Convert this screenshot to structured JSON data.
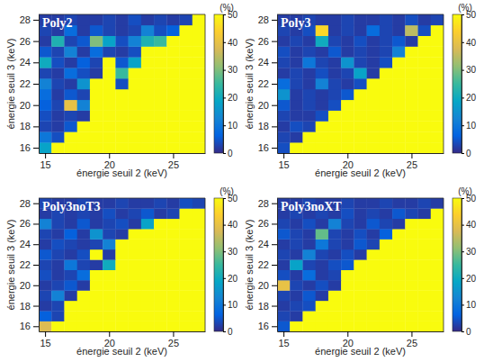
{
  "chart_data": [
    {
      "type": "heatmap",
      "title": "Poly2",
      "x_label": "énergie seuil 2 (keV)",
      "y_label": "énergie seuil 3 (keV)",
      "x": [
        15,
        16,
        17,
        18,
        19,
        20,
        21,
        22,
        23,
        24,
        25,
        26,
        27
      ],
      "y": [
        16,
        17,
        18,
        19,
        20,
        21,
        22,
        23,
        24,
        25,
        26,
        27,
        28
      ],
      "xlim": [
        14.5,
        27.5
      ],
      "ylim": [
        15.5,
        28.5
      ],
      "xticks": [
        15,
        20,
        25
      ],
      "yticks": [
        16,
        18,
        20,
        22,
        24,
        26,
        28
      ],
      "colorbar": {
        "label": "(%)",
        "range": [
          0,
          50
        ],
        "ticks": [
          0,
          10,
          20,
          30,
          40,
          50
        ]
      },
      "values": [
        [
          18,
          50,
          50,
          50,
          50,
          50,
          50,
          50,
          50,
          50,
          50,
          50,
          50
        ],
        [
          10,
          4,
          50,
          50,
          50,
          50,
          50,
          50,
          50,
          50,
          50,
          50,
          50
        ],
        [
          3,
          2,
          5,
          50,
          50,
          50,
          50,
          50,
          50,
          50,
          50,
          50,
          50
        ],
        [
          4,
          2,
          3,
          2,
          50,
          50,
          50,
          50,
          50,
          50,
          50,
          50,
          50
        ],
        [
          6,
          3,
          40,
          12,
          50,
          50,
          50,
          50,
          50,
          50,
          50,
          50,
          50
        ],
        [
          8,
          2,
          5,
          3,
          50,
          50,
          50,
          50,
          50,
          50,
          50,
          50,
          50
        ],
        [
          12,
          3,
          2,
          15,
          50,
          50,
          4,
          50,
          50,
          50,
          50,
          50,
          50
        ],
        [
          3,
          2,
          8,
          4,
          2,
          50,
          25,
          50,
          50,
          50,
          50,
          50,
          50
        ],
        [
          20,
          4,
          2,
          6,
          3,
          50,
          5,
          18,
          50,
          50,
          50,
          50,
          50
        ],
        [
          5,
          3,
          12,
          2,
          8,
          3,
          2,
          4,
          50,
          50,
          50,
          50,
          50
        ],
        [
          2,
          22,
          3,
          5,
          30,
          18,
          4,
          12,
          22,
          25,
          50,
          50,
          50
        ],
        [
          3,
          2,
          8,
          2,
          5,
          3,
          2,
          3,
          12,
          4,
          6,
          50,
          50
        ],
        [
          2,
          2,
          3,
          2,
          2,
          3,
          2,
          4,
          2,
          3,
          2,
          3,
          50
        ]
      ]
    },
    {
      "type": "heatmap",
      "title": "Poly3",
      "x_label": "énergie seuil 2 (keV)",
      "y_label": "énergie seuil 3 (keV)",
      "x": [
        15,
        16,
        17,
        18,
        19,
        20,
        21,
        22,
        23,
        24,
        25,
        26,
        27
      ],
      "y": [
        16,
        17,
        18,
        19,
        20,
        21,
        22,
        23,
        24,
        25,
        26,
        27,
        28
      ],
      "xlim": [
        14.5,
        27.5
      ],
      "ylim": [
        15.5,
        28.5
      ],
      "xticks": [
        15,
        20,
        25
      ],
      "yticks": [
        16,
        18,
        20,
        22,
        24,
        26,
        28
      ],
      "colorbar": {
        "label": "(%)",
        "range": [
          0,
          50
        ],
        "ticks": [
          0,
          10,
          20,
          30,
          40,
          50
        ]
      },
      "values": [
        [
          4,
          50,
          50,
          50,
          50,
          50,
          50,
          50,
          50,
          50,
          50,
          50,
          50
        ],
        [
          3,
          2,
          50,
          50,
          50,
          50,
          50,
          50,
          50,
          50,
          50,
          50,
          50
        ],
        [
          2,
          4,
          3,
          50,
          50,
          50,
          50,
          50,
          50,
          50,
          50,
          50,
          50
        ],
        [
          3,
          2,
          2,
          4,
          50,
          50,
          50,
          50,
          50,
          50,
          50,
          50,
          50
        ],
        [
          5,
          2,
          3,
          2,
          4,
          50,
          50,
          50,
          50,
          50,
          50,
          50,
          50
        ],
        [
          15,
          2,
          3,
          2,
          3,
          5,
          50,
          50,
          50,
          50,
          50,
          50,
          50
        ],
        [
          8,
          3,
          2,
          12,
          3,
          2,
          4,
          50,
          50,
          50,
          50,
          50,
          50
        ],
        [
          2,
          3,
          2,
          4,
          2,
          3,
          18,
          2,
          50,
          50,
          50,
          50,
          50
        ],
        [
          3,
          2,
          10,
          3,
          2,
          15,
          3,
          2,
          4,
          50,
          50,
          50,
          50
        ],
        [
          4,
          2,
          3,
          2,
          5,
          2,
          3,
          2,
          3,
          12,
          50,
          50,
          50
        ],
        [
          2,
          3,
          2,
          20,
          3,
          2,
          4,
          2,
          3,
          5,
          2,
          50,
          50
        ],
        [
          3,
          2,
          4,
          45,
          2,
          3,
          2,
          8,
          3,
          2,
          35,
          4,
          50
        ],
        [
          2,
          2,
          3,
          2,
          2,
          3,
          2,
          2,
          3,
          2,
          4,
          2,
          3
        ]
      ]
    },
    {
      "type": "heatmap",
      "title": "Poly3noT3",
      "x_label": "énergie seuil 2 (keV)",
      "y_label": "énergie seuil 3 (keV)",
      "x": [
        15,
        16,
        17,
        18,
        19,
        20,
        21,
        22,
        23,
        24,
        25,
        26,
        27
      ],
      "y": [
        16,
        17,
        18,
        19,
        20,
        21,
        22,
        23,
        24,
        25,
        26,
        27,
        28
      ],
      "xlim": [
        14.5,
        27.5
      ],
      "ylim": [
        15.5,
        28.5
      ],
      "xticks": [
        15,
        20,
        25
      ],
      "yticks": [
        16,
        18,
        20,
        22,
        24,
        26,
        28
      ],
      "colorbar": {
        "label": "(%)",
        "range": [
          0,
          50
        ],
        "ticks": [
          0,
          10,
          20,
          30,
          40,
          50
        ]
      },
      "values": [
        [
          38,
          50,
          50,
          50,
          50,
          50,
          50,
          50,
          50,
          50,
          50,
          50,
          50
        ],
        [
          6,
          3,
          50,
          50,
          50,
          50,
          50,
          50,
          50,
          50,
          50,
          50,
          50
        ],
        [
          2,
          3,
          50,
          50,
          50,
          50,
          50,
          50,
          50,
          50,
          50,
          50,
          50
        ],
        [
          3,
          12,
          2,
          50,
          50,
          50,
          50,
          50,
          50,
          50,
          50,
          50,
          50
        ],
        [
          2,
          3,
          5,
          2,
          50,
          50,
          50,
          50,
          50,
          50,
          50,
          50,
          50
        ],
        [
          4,
          2,
          3,
          8,
          50,
          50,
          50,
          50,
          50,
          50,
          50,
          50,
          50
        ],
        [
          3,
          2,
          10,
          3,
          2,
          20,
          50,
          50,
          50,
          50,
          50,
          50,
          50
        ],
        [
          5,
          3,
          2,
          4,
          50,
          2,
          50,
          50,
          50,
          50,
          50,
          50,
          50
        ],
        [
          2,
          4,
          3,
          2,
          3,
          12,
          50,
          50,
          50,
          50,
          50,
          50,
          50
        ],
        [
          3,
          2,
          6,
          2,
          15,
          3,
          2,
          50,
          50,
          50,
          50,
          50,
          50
        ],
        [
          12,
          3,
          2,
          5,
          2,
          3,
          4,
          2,
          18,
          50,
          50,
          50,
          50
        ],
        [
          2,
          3,
          2,
          3,
          2,
          4,
          2,
          3,
          5,
          2,
          3,
          50,
          50
        ],
        [
          3,
          2,
          2,
          3,
          2,
          2,
          3,
          2,
          2,
          3,
          2,
          4,
          3
        ]
      ]
    },
    {
      "type": "heatmap",
      "title": "Poly3noXT",
      "x_label": "énergie seuil 2 (keV)",
      "y_label": "énergie seuil 3 (keV)",
      "x": [
        15,
        16,
        17,
        18,
        19,
        20,
        21,
        22,
        23,
        24,
        25,
        26,
        27
      ],
      "y": [
        16,
        17,
        18,
        19,
        20,
        21,
        22,
        23,
        24,
        25,
        26,
        27,
        28
      ],
      "xlim": [
        14.5,
        27.5
      ],
      "ylim": [
        15.5,
        28.5
      ],
      "xticks": [
        15,
        20,
        25
      ],
      "yticks": [
        16,
        18,
        20,
        22,
        24,
        26,
        28
      ],
      "colorbar": {
        "label": "(%)",
        "range": [
          0,
          50
        ],
        "ticks": [
          0,
          10,
          20,
          30,
          40,
          50
        ]
      },
      "values": [
        [
          5,
          50,
          50,
          50,
          50,
          50,
          50,
          50,
          50,
          50,
          50,
          50,
          50
        ],
        [
          3,
          2,
          50,
          50,
          50,
          50,
          50,
          50,
          50,
          50,
          50,
          50,
          50
        ],
        [
          2,
          3,
          4,
          50,
          50,
          50,
          50,
          50,
          50,
          50,
          50,
          50,
          50
        ],
        [
          3,
          2,
          5,
          2,
          50,
          50,
          50,
          50,
          50,
          50,
          50,
          50,
          50
        ],
        [
          40,
          3,
          2,
          4,
          2,
          50,
          50,
          50,
          50,
          50,
          50,
          50,
          50
        ],
        [
          4,
          2,
          8,
          2,
          3,
          50,
          50,
          50,
          50,
          50,
          50,
          50,
          50
        ],
        [
          2,
          18,
          3,
          2,
          4,
          5,
          50,
          50,
          50,
          50,
          50,
          50,
          50
        ],
        [
          3,
          2,
          12,
          3,
          2,
          4,
          2,
          50,
          50,
          50,
          50,
          50,
          50
        ],
        [
          2,
          3,
          2,
          10,
          3,
          2,
          5,
          3,
          50,
          50,
          50,
          50,
          50
        ],
        [
          5,
          3,
          2,
          28,
          3,
          2,
          4,
          2,
          6,
          50,
          50,
          50,
          50
        ],
        [
          3,
          2,
          4,
          2,
          12,
          3,
          2,
          5,
          3,
          2,
          50,
          50,
          50
        ],
        [
          2,
          3,
          2,
          3,
          2,
          4,
          2,
          3,
          2,
          5,
          3,
          2,
          50
        ],
        [
          2,
          2,
          3,
          2,
          2,
          3,
          2,
          2,
          3,
          2,
          2,
          3,
          2
        ]
      ]
    }
  ]
}
